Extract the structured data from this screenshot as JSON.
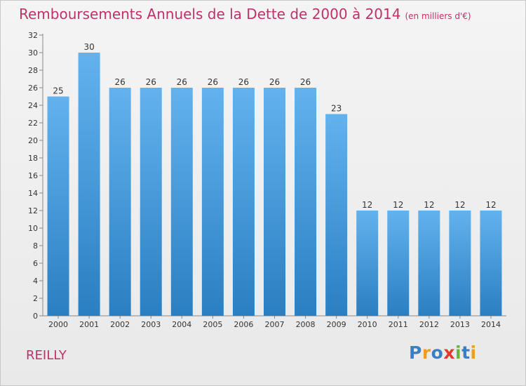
{
  "chart_data": {
    "type": "bar",
    "title": "Remboursements Annuels de la Dette de 2000 à 2014",
    "unit_label": "(en milliers d'€)",
    "categories": [
      "2000",
      "2001",
      "2002",
      "2003",
      "2004",
      "2005",
      "2006",
      "2007",
      "2008",
      "2009",
      "2010",
      "2011",
      "2012",
      "2013",
      "2014"
    ],
    "values": [
      25,
      30,
      26,
      26,
      26,
      26,
      26,
      26,
      26,
      23,
      12,
      12,
      12,
      12,
      12
    ],
    "data_labels": [
      "25",
      "30",
      "26",
      "26",
      "26",
      "26",
      "26",
      "26",
      "26",
      "23",
      "12",
      "12",
      "12",
      "12",
      "12"
    ],
    "y_ticks": [
      "0",
      "2",
      "4",
      "6",
      "8",
      "10",
      "12",
      "14",
      "16",
      "18",
      "20",
      "22",
      "24",
      "26",
      "28",
      "30",
      "32"
    ],
    "ylim": [
      0,
      32
    ],
    "grid": false,
    "colors": {
      "bar_top": "#63b2ee",
      "bar_bottom": "#2a7fc2",
      "title": "#c0306a"
    }
  },
  "footer": {
    "commune": "REILLY"
  },
  "logo": {
    "text": "Proxiti",
    "letters": [
      {
        "char": "P",
        "color": "#3a7fc4"
      },
      {
        "char": "r",
        "color": "#f39a1f"
      },
      {
        "char": "o",
        "color": "#3a7fc4"
      },
      {
        "char": "x",
        "color": "#e23b2e"
      },
      {
        "char": "i",
        "color": "#6ab43e"
      },
      {
        "char": "t",
        "color": "#3a7fc4"
      },
      {
        "char": "i",
        "color": "#f39a1f"
      }
    ]
  }
}
